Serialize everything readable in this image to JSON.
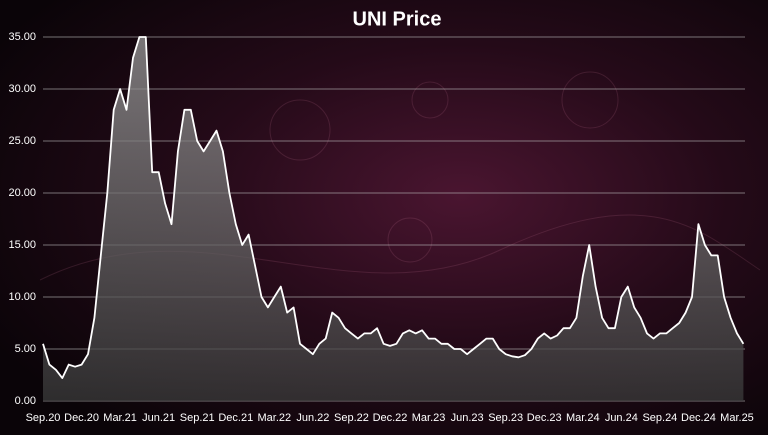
{
  "chart_data": {
    "type": "area",
    "title": "UNI Price",
    "categories": [
      "Sep.20",
      null,
      null,
      null,
      null,
      null,
      "Dec.20",
      null,
      null,
      null,
      null,
      null,
      "Mar.21",
      null,
      null,
      null,
      null,
      null,
      "Jun.21",
      null,
      null,
      null,
      null,
      null,
      "Sep.21",
      null,
      null,
      null,
      null,
      null,
      "Dec.21",
      null,
      null,
      null,
      null,
      null,
      "Mar.22",
      null,
      null,
      null,
      null,
      null,
      "Jun.22",
      null,
      null,
      null,
      null,
      null,
      "Sep.22",
      null,
      null,
      null,
      null,
      null,
      "Dec.22",
      null,
      null,
      null,
      null,
      null,
      "Mar.23",
      null,
      null,
      null,
      null,
      null,
      "Jun.23",
      null,
      null,
      null,
      null,
      null,
      "Sep.23",
      null,
      null,
      null,
      null,
      null,
      "Dec.23",
      null,
      null,
      null,
      null,
      null,
      "Mar.24",
      null,
      null,
      null,
      null,
      null,
      "Jun.24",
      null,
      null,
      null,
      null,
      null,
      "Sep.24",
      null,
      null,
      null,
      null,
      null,
      "Dec.24",
      null,
      null,
      null,
      null,
      null,
      "Mar.25",
      null
    ],
    "values": [
      5.5,
      3.5,
      3.0,
      2.2,
      3.5,
      3.3,
      3.5,
      4.5,
      8,
      14,
      20,
      28,
      30,
      28,
      33,
      35,
      35,
      22,
      22,
      19,
      17,
      24,
      28,
      28,
      25,
      24,
      25,
      26,
      24,
      20,
      17,
      15,
      16,
      13,
      10,
      9,
      10,
      11,
      8.5,
      9,
      5.5,
      5,
      4.5,
      5.5,
      6,
      8.5,
      8,
      7,
      6.5,
      6,
      6.5,
      6.5,
      7,
      5.5,
      5.3,
      5.5,
      6.5,
      6.8,
      6.5,
      6.8,
      6,
      6,
      5.5,
      5.5,
      5,
      5,
      4.5,
      5,
      5.5,
      6,
      6,
      5,
      4.5,
      4.3,
      4.2,
      4.4,
      5,
      6,
      6.5,
      6,
      6.3,
      7,
      7,
      8,
      12,
      15,
      11,
      8,
      7,
      7,
      10,
      11,
      9,
      8,
      6.5,
      6,
      6.5,
      6.5,
      7,
      7.5,
      8.5,
      10,
      17,
      15,
      14,
      14,
      10,
      8,
      6.5,
      5.5
    ],
    "color": "#ffffff",
    "fill": "#8a8a8a",
    "ylim": [
      0,
      35
    ],
    "yticks": [
      {
        "value": 0,
        "label": "0.00"
      },
      {
        "value": 5,
        "label": "5.00"
      },
      {
        "value": 10,
        "label": "10.00"
      },
      {
        "value": 15,
        "label": "15.00"
      },
      {
        "value": 20,
        "label": "20.00"
      },
      {
        "value": 25,
        "label": "25.00"
      },
      {
        "value": 30,
        "label": "30.00"
      },
      {
        "value": 35,
        "label": "35.00"
      }
    ],
    "grid": true
  }
}
